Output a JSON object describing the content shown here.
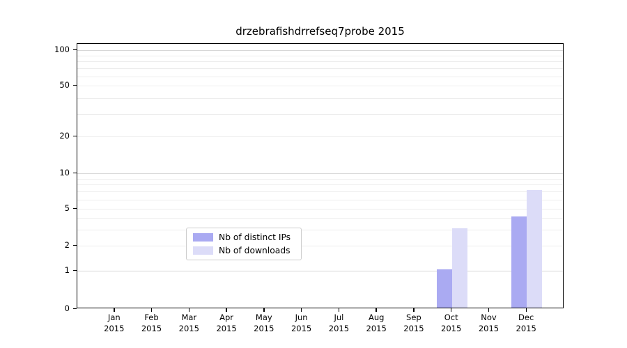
{
  "title": "drzebrafishdrrefseq7probe 2015",
  "chart_data": {
    "type": "bar",
    "title": "drzebrafishdrrefseq7probe 2015",
    "categories": [
      "Jan",
      "Feb",
      "Mar",
      "Apr",
      "May",
      "Jun",
      "Jul",
      "Aug",
      "Sep",
      "Oct",
      "Nov",
      "Dec"
    ],
    "year_label": "2015",
    "series": [
      {
        "name": "Nb of distinct IPs",
        "color": "#aaaaf2",
        "values": [
          0,
          0,
          0,
          0,
          0,
          0,
          0,
          0,
          0,
          1,
          0,
          4
        ]
      },
      {
        "name": "Nb of downloads",
        "color": "#dcdcf8",
        "values": [
          0,
          0,
          0,
          0,
          0,
          0,
          0,
          0,
          0,
          3,
          0,
          7
        ]
      }
    ],
    "ytick_labels": [
      "0",
      "1",
      "2",
      "5",
      "10",
      "20",
      "50",
      "100"
    ],
    "ytick_values": [
      0,
      1,
      2,
      5,
      10,
      20,
      50,
      100
    ],
    "major_gridline_values": [
      1,
      10,
      100
    ],
    "minor_gridline_values": [
      2,
      3,
      4,
      5,
      6,
      7,
      8,
      9,
      20,
      30,
      40,
      50,
      60,
      70,
      80,
      90
    ],
    "ylim": [
      0,
      113
    ],
    "xlabel": "",
    "ylabel": "",
    "grid": true,
    "legend_position": "lower center",
    "colors": {
      "major_grid": "#d7d7d7",
      "minor_grid": "#ededed",
      "spine": "#000000",
      "text": "#000000",
      "background": "#ffffff"
    }
  }
}
